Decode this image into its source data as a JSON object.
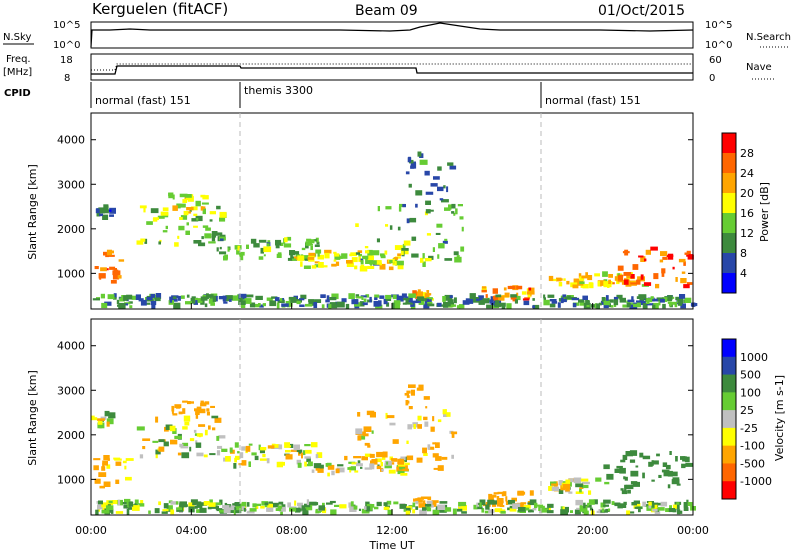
{
  "header": {
    "station": "Kerguelen (fitACF)",
    "beam": "Beam 09",
    "date": "01/Oct/2015"
  },
  "summary": {
    "nsky_label": "N.Sky",
    "nsky_ticks": [
      "10^5",
      "10^0"
    ],
    "nsearch_label": "N.Search",
    "nsearch_ticks": [
      "10^5",
      "10^0"
    ],
    "freq_label": "Freq.",
    "freq_unit": "[MHz]",
    "freq_ticks": [
      "18",
      "8"
    ],
    "nave_label": "Nave",
    "nave_ticks": [
      "60",
      "0"
    ],
    "cpid_label": "CPID",
    "cpid_segments": [
      {
        "label": "normal (fast) 151",
        "start": 0
      },
      {
        "label": "themis 3300",
        "start": 6
      },
      {
        "label": "normal (fast) 151",
        "start": 18
      }
    ]
  },
  "chart_data": [
    {
      "type": "heatmap",
      "name": "power",
      "ylabel": "Slant Range [km]",
      "yticks": [
        "1000",
        "2000",
        "3000",
        "4000"
      ],
      "ylim": [
        200,
        4600
      ],
      "colorbar_label": "Power [dB]",
      "colorbar_ticks": [
        "4",
        "8",
        "12",
        "16",
        "20",
        "24",
        "28"
      ],
      "colors": [
        "#0000ff",
        "#2847a8",
        "#3d8a3d",
        "#66cc33",
        "#ffff00",
        "#ffa500",
        "#ff6600",
        "#ff0000"
      ],
      "regions": [
        {
          "t": [
            0.0,
            1.3
          ],
          "r": [
            800,
            1500
          ],
          "v": 24
        },
        {
          "t": [
            0.0,
            0.9
          ],
          "r": [
            2200,
            2500
          ],
          "v": 8
        },
        {
          "t": [
            1.8,
            5.2
          ],
          "r": [
            1600,
            2500
          ],
          "v": 14
        },
        {
          "t": [
            3.0,
            4.8
          ],
          "r": [
            2300,
            2800
          ],
          "v": 18
        },
        {
          "t": [
            5.0,
            9.0
          ],
          "r": [
            1300,
            1800
          ],
          "v": 12
        },
        {
          "t": [
            8.0,
            12.5
          ],
          "r": [
            1100,
            1500
          ],
          "v": 18
        },
        {
          "t": [
            10.5,
            14.8
          ],
          "r": [
            1200,
            2600
          ],
          "v": 12
        },
        {
          "t": [
            12.4,
            14.4
          ],
          "r": [
            2500,
            3700
          ],
          "v": 8
        },
        {
          "t": [
            12.8,
            13.6
          ],
          "r": [
            400,
            600
          ],
          "v": 22
        },
        {
          "t": [
            15.5,
            17.5
          ],
          "r": [
            400,
            700
          ],
          "v": 24
        },
        {
          "t": [
            18.2,
            22.0
          ],
          "r": [
            700,
            1000
          ],
          "v": 20
        },
        {
          "t": [
            21.0,
            23.8
          ],
          "r": [
            700,
            1600
          ],
          "v": 26
        },
        {
          "t": [
            0.0,
            24.0
          ],
          "r": [
            250,
            500
          ],
          "v": 10
        }
      ]
    },
    {
      "type": "heatmap",
      "name": "velocity",
      "ylabel": "Slant Range [km]",
      "yticks": [
        "1000",
        "2000",
        "3000",
        "4000"
      ],
      "ylim": [
        200,
        4600
      ],
      "xlabel": "Time UT",
      "xticks": [
        "00:00",
        "04:00",
        "08:00",
        "12:00",
        "16:00",
        "20:00",
        "00:00"
      ],
      "xlim": [
        0,
        24
      ],
      "colorbar_label": "Velocity [m s-1]",
      "colorbar_ticks": [
        "1000",
        "500",
        "100",
        "25",
        "-25",
        "-100",
        "-500",
        "-1000"
      ],
      "colors": [
        "#0000ff",
        "#2847a8",
        "#3d8a3d",
        "#66cc33",
        "#c0c0c0",
        "#ffff00",
        "#ffa500",
        "#ff6600",
        "#ff0000"
      ],
      "regions": [
        {
          "t": [
            0.0,
            1.4
          ],
          "r": [
            800,
            1500
          ],
          "v": -150
        },
        {
          "t": [
            0.0,
            0.9
          ],
          "r": [
            2200,
            2500
          ],
          "v": 0
        },
        {
          "t": [
            1.8,
            5.2
          ],
          "r": [
            1500,
            2400
          ],
          "v": 0
        },
        {
          "t": [
            3.2,
            4.8
          ],
          "r": [
            2400,
            2800
          ],
          "v": -300
        },
        {
          "t": [
            5.0,
            9.0
          ],
          "r": [
            1300,
            1800
          ],
          "v": 0
        },
        {
          "t": [
            8.0,
            12.5
          ],
          "r": [
            1100,
            1500
          ],
          "v": 0
        },
        {
          "t": [
            10.5,
            14.6
          ],
          "r": [
            1200,
            2600
          ],
          "v": -120
        },
        {
          "t": [
            12.5,
            13.4
          ],
          "r": [
            2600,
            3100
          ],
          "v": -300
        },
        {
          "t": [
            12.8,
            13.6
          ],
          "r": [
            400,
            600
          ],
          "v": -300
        },
        {
          "t": [
            15.5,
            17.5
          ],
          "r": [
            400,
            700
          ],
          "v": -250
        },
        {
          "t": [
            18.2,
            20.5
          ],
          "r": [
            700,
            1000
          ],
          "v": 0
        },
        {
          "t": [
            20.3,
            23.8
          ],
          "r": [
            700,
            1600
          ],
          "v": 300
        },
        {
          "t": [
            0.0,
            24.0
          ],
          "r": [
            250,
            500
          ],
          "v": 80
        }
      ]
    }
  ]
}
